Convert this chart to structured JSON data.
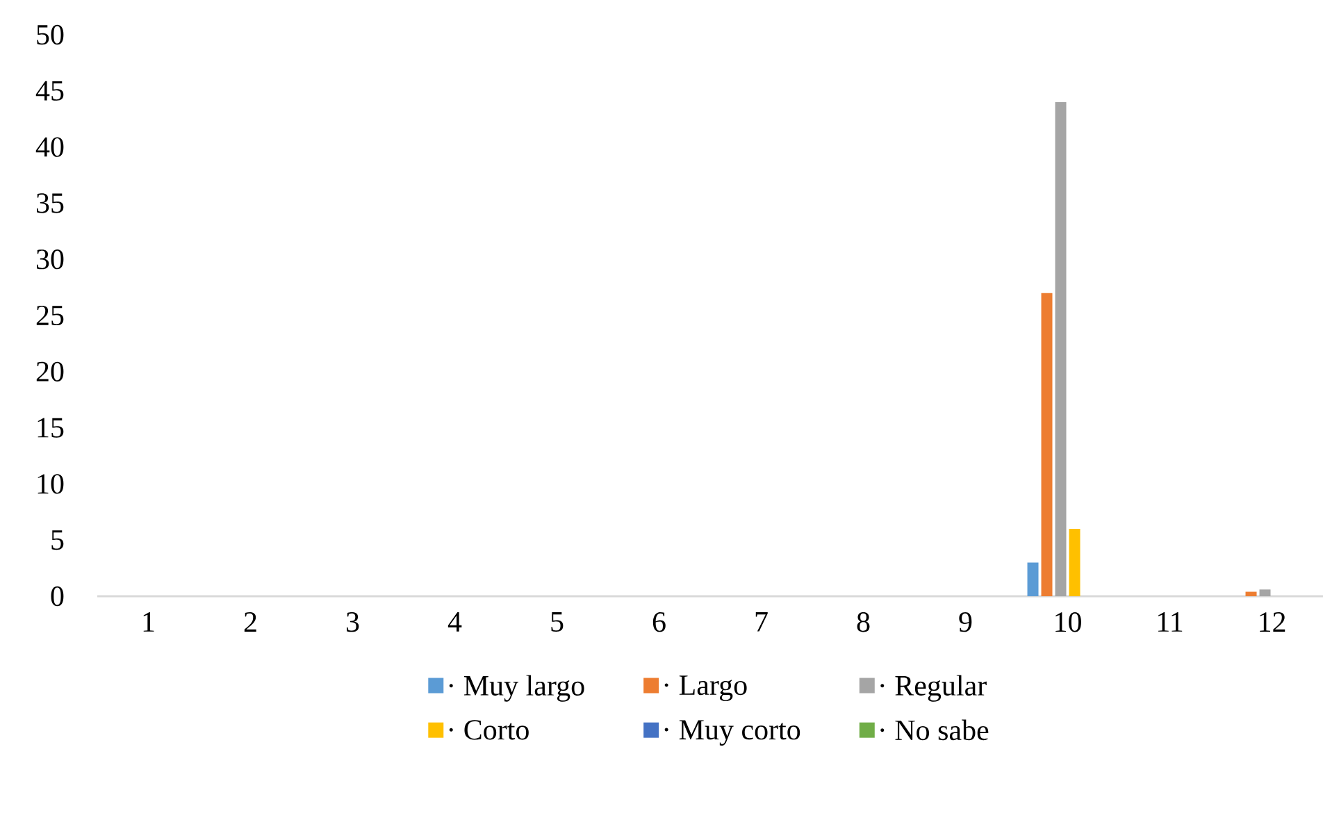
{
  "chart_data": {
    "type": "bar",
    "categories": [
      "1",
      "2",
      "3",
      "4",
      "5",
      "6",
      "7",
      "8",
      "9",
      "10",
      "11",
      "12"
    ],
    "series": [
      {
        "name": "· Muy largo",
        "color": "#5b9bd5",
        "values": [
          0,
          0,
          0,
          0,
          0,
          0,
          0,
          0,
          0,
          3,
          0,
          0
        ]
      },
      {
        "name": "· Largo",
        "color": "#ed7d31",
        "values": [
          0,
          0,
          0,
          0,
          0,
          0,
          0,
          0,
          0,
          27,
          0,
          0.4
        ]
      },
      {
        "name": "· Regular",
        "color": "#a5a5a5",
        "values": [
          0,
          0,
          0,
          0,
          0,
          0,
          0,
          0,
          0,
          44,
          0,
          0.6
        ]
      },
      {
        "name": "· Corto",
        "color": "#ffc000",
        "values": [
          0,
          0,
          0,
          0,
          0,
          0,
          0,
          0,
          0,
          6,
          0,
          0
        ]
      },
      {
        "name": "· Muy corto",
        "color": "#4472c4",
        "values": [
          0,
          0,
          0,
          0,
          0,
          0,
          0,
          0,
          0,
          0,
          0,
          0
        ]
      },
      {
        "name": "· No sabe",
        "color": "#70ad47",
        "values": [
          0,
          0,
          0,
          0,
          0,
          0,
          0,
          0,
          0,
          0,
          0,
          0
        ]
      }
    ],
    "ylim": [
      0,
      50
    ],
    "yticks": [
      0,
      5,
      10,
      15,
      20,
      25,
      30,
      35,
      40,
      45,
      50
    ],
    "grid": false,
    "legend": "bottom"
  }
}
